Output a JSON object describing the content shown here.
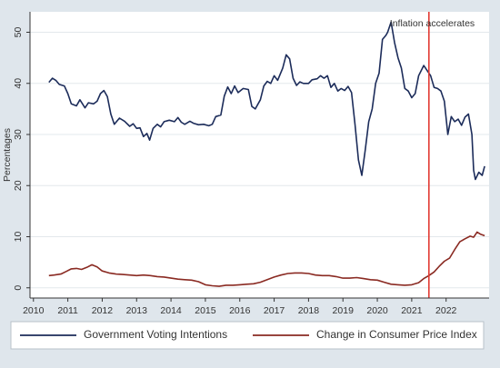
{
  "colors": {
    "page_bg": "#dfe6ec",
    "plot_bg": "#ffffff",
    "legend_bg": "#ffffff",
    "axis": "#333333",
    "grid": "#e3e8ec",
    "tick_text": "#333333",
    "vote_series": "#1c2c5a",
    "cpi_series": "#8a2a22",
    "marker_line": "#e23b34"
  },
  "chart_data": {
    "type": "line",
    "title": "",
    "xlabel": "",
    "ylabel": "Percentages",
    "xlim": [
      2009.9,
      2023.25
    ],
    "ylim": [
      -2,
      54
    ],
    "xticks": [
      2010,
      2011,
      2012,
      2013,
      2014,
      2015,
      2016,
      2017,
      2018,
      2019,
      2020,
      2021,
      2022
    ],
    "yticks": [
      0,
      10,
      20,
      30,
      40,
      50
    ],
    "grid": true,
    "legend_position": "bottom",
    "annotation": {
      "x": 2021.5,
      "label": "Inflation accelerates"
    },
    "series": [
      {
        "name": "Government Voting Intentions",
        "color_key": "vote_series",
        "points": [
          [
            2010.45,
            40.2
          ],
          [
            2010.55,
            41.0
          ],
          [
            2010.65,
            40.6
          ],
          [
            2010.75,
            39.8
          ],
          [
            2010.9,
            39.5
          ],
          [
            2011.0,
            38.0
          ],
          [
            2011.1,
            36.0
          ],
          [
            2011.25,
            35.6
          ],
          [
            2011.35,
            36.8
          ],
          [
            2011.5,
            35.2
          ],
          [
            2011.6,
            36.2
          ],
          [
            2011.75,
            36.0
          ],
          [
            2011.85,
            36.5
          ],
          [
            2011.95,
            38.0
          ],
          [
            2012.05,
            38.6
          ],
          [
            2012.15,
            37.4
          ],
          [
            2012.25,
            34.0
          ],
          [
            2012.35,
            32.0
          ],
          [
            2012.5,
            33.2
          ],
          [
            2012.65,
            32.6
          ],
          [
            2012.8,
            31.6
          ],
          [
            2012.9,
            32.1
          ],
          [
            2013.0,
            31.2
          ],
          [
            2013.1,
            31.3
          ],
          [
            2013.2,
            29.6
          ],
          [
            2013.3,
            30.2
          ],
          [
            2013.38,
            28.9
          ],
          [
            2013.48,
            31.2
          ],
          [
            2013.6,
            32.0
          ],
          [
            2013.7,
            31.5
          ],
          [
            2013.8,
            32.5
          ],
          [
            2013.95,
            32.8
          ],
          [
            2014.1,
            32.5
          ],
          [
            2014.2,
            33.3
          ],
          [
            2014.3,
            32.4
          ],
          [
            2014.4,
            32.0
          ],
          [
            2014.55,
            32.6
          ],
          [
            2014.65,
            32.2
          ],
          [
            2014.8,
            31.9
          ],
          [
            2014.95,
            32.0
          ],
          [
            2015.1,
            31.7
          ],
          [
            2015.2,
            32.0
          ],
          [
            2015.3,
            33.5
          ],
          [
            2015.45,
            33.8
          ],
          [
            2015.55,
            37.5
          ],
          [
            2015.65,
            39.3
          ],
          [
            2015.75,
            38.0
          ],
          [
            2015.85,
            39.5
          ],
          [
            2015.95,
            38.2
          ],
          [
            2016.1,
            39.0
          ],
          [
            2016.25,
            38.8
          ],
          [
            2016.35,
            35.5
          ],
          [
            2016.45,
            35.0
          ],
          [
            2016.6,
            36.8
          ],
          [
            2016.7,
            39.5
          ],
          [
            2016.8,
            40.4
          ],
          [
            2016.9,
            40.0
          ],
          [
            2017.0,
            41.5
          ],
          [
            2017.1,
            40.6
          ],
          [
            2017.25,
            43.0
          ],
          [
            2017.35,
            45.6
          ],
          [
            2017.45,
            44.8
          ],
          [
            2017.55,
            41.0
          ],
          [
            2017.65,
            39.6
          ],
          [
            2017.75,
            40.3
          ],
          [
            2017.85,
            40.0
          ],
          [
            2018.0,
            40.0
          ],
          [
            2018.1,
            40.7
          ],
          [
            2018.25,
            40.9
          ],
          [
            2018.35,
            41.5
          ],
          [
            2018.45,
            41.0
          ],
          [
            2018.55,
            41.5
          ],
          [
            2018.65,
            39.2
          ],
          [
            2018.75,
            40.0
          ],
          [
            2018.85,
            38.5
          ],
          [
            2018.95,
            39.0
          ],
          [
            2019.05,
            38.6
          ],
          [
            2019.15,
            39.4
          ],
          [
            2019.25,
            38.2
          ],
          [
            2019.35,
            32.0
          ],
          [
            2019.45,
            25.0
          ],
          [
            2019.55,
            22.0
          ],
          [
            2019.65,
            27.0
          ],
          [
            2019.75,
            32.5
          ],
          [
            2019.85,
            35.0
          ],
          [
            2019.95,
            40.0
          ],
          [
            2020.05,
            42.0
          ],
          [
            2020.15,
            48.6
          ],
          [
            2020.25,
            49.4
          ],
          [
            2020.3,
            50.0
          ],
          [
            2020.4,
            52.0
          ],
          [
            2020.5,
            48.0
          ],
          [
            2020.6,
            45.0
          ],
          [
            2020.7,
            43.0
          ],
          [
            2020.8,
            39.0
          ],
          [
            2020.9,
            38.5
          ],
          [
            2021.0,
            37.2
          ],
          [
            2021.1,
            38.0
          ],
          [
            2021.2,
            41.5
          ],
          [
            2021.35,
            43.5
          ],
          [
            2021.45,
            42.5
          ],
          [
            2021.55,
            41.5
          ],
          [
            2021.65,
            39.2
          ],
          [
            2021.75,
            39.0
          ],
          [
            2021.85,
            38.5
          ],
          [
            2021.95,
            36.5
          ],
          [
            2022.05,
            30.0
          ],
          [
            2022.15,
            33.5
          ],
          [
            2022.25,
            32.5
          ],
          [
            2022.35,
            33.0
          ],
          [
            2022.45,
            31.8
          ],
          [
            2022.55,
            33.4
          ],
          [
            2022.65,
            34.0
          ],
          [
            2022.75,
            30.0
          ],
          [
            2022.8,
            23.0
          ],
          [
            2022.85,
            21.2
          ],
          [
            2022.95,
            22.6
          ],
          [
            2023.05,
            22.0
          ],
          [
            2023.12,
            23.8
          ]
        ]
      },
      {
        "name": "Change in Consumer Price Index",
        "color_key": "cpi_series",
        "points": [
          [
            2010.45,
            2.4
          ],
          [
            2010.6,
            2.5
          ],
          [
            2010.8,
            2.7
          ],
          [
            2010.95,
            3.2
          ],
          [
            2011.1,
            3.7
          ],
          [
            2011.25,
            3.8
          ],
          [
            2011.4,
            3.6
          ],
          [
            2011.55,
            4.0
          ],
          [
            2011.7,
            4.5
          ],
          [
            2011.85,
            4.1
          ],
          [
            2012.0,
            3.3
          ],
          [
            2012.2,
            2.9
          ],
          [
            2012.4,
            2.7
          ],
          [
            2012.6,
            2.6
          ],
          [
            2012.8,
            2.5
          ],
          [
            2013.0,
            2.4
          ],
          [
            2013.2,
            2.5
          ],
          [
            2013.4,
            2.4
          ],
          [
            2013.6,
            2.2
          ],
          [
            2013.8,
            2.1
          ],
          [
            2014.0,
            1.9
          ],
          [
            2014.2,
            1.7
          ],
          [
            2014.4,
            1.6
          ],
          [
            2014.6,
            1.5
          ],
          [
            2014.8,
            1.2
          ],
          [
            2015.0,
            0.6
          ],
          [
            2015.2,
            0.4
          ],
          [
            2015.4,
            0.3
          ],
          [
            2015.6,
            0.5
          ],
          [
            2015.8,
            0.5
          ],
          [
            2016.0,
            0.6
          ],
          [
            2016.2,
            0.7
          ],
          [
            2016.4,
            0.8
          ],
          [
            2016.6,
            1.1
          ],
          [
            2016.8,
            1.6
          ],
          [
            2017.0,
            2.1
          ],
          [
            2017.2,
            2.5
          ],
          [
            2017.4,
            2.8
          ],
          [
            2017.6,
            2.9
          ],
          [
            2017.8,
            2.9
          ],
          [
            2018.0,
            2.8
          ],
          [
            2018.2,
            2.5
          ],
          [
            2018.4,
            2.4
          ],
          [
            2018.6,
            2.4
          ],
          [
            2018.8,
            2.2
          ],
          [
            2019.0,
            1.9
          ],
          [
            2019.2,
            1.9
          ],
          [
            2019.4,
            2.0
          ],
          [
            2019.6,
            1.8
          ],
          [
            2019.8,
            1.6
          ],
          [
            2020.0,
            1.5
          ],
          [
            2020.2,
            1.1
          ],
          [
            2020.4,
            0.7
          ],
          [
            2020.6,
            0.6
          ],
          [
            2020.8,
            0.5
          ],
          [
            2021.0,
            0.6
          ],
          [
            2021.2,
            1.0
          ],
          [
            2021.35,
            1.8
          ],
          [
            2021.5,
            2.4
          ],
          [
            2021.65,
            3.1
          ],
          [
            2021.8,
            4.2
          ],
          [
            2021.95,
            5.2
          ],
          [
            2022.1,
            5.8
          ],
          [
            2022.25,
            7.5
          ],
          [
            2022.4,
            9.0
          ],
          [
            2022.55,
            9.6
          ],
          [
            2022.7,
            10.1
          ],
          [
            2022.8,
            9.9
          ],
          [
            2022.9,
            10.9
          ],
          [
            2023.0,
            10.5
          ],
          [
            2023.12,
            10.2
          ]
        ]
      }
    ]
  }
}
